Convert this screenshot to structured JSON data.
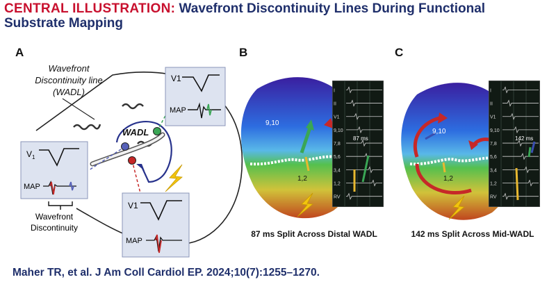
{
  "header": {
    "keyword": "CENTRAL ILLUSTRATION:",
    "title_line1": "Wavefront Discontinuity Lines During Functional",
    "title_line2": "Substrate Mapping"
  },
  "panel_a": {
    "letter": "A",
    "wadl_caption_l1": "Wavefront",
    "wadl_caption_l2": "Discontinuity line",
    "wadl_caption_l3": "(WADL)",
    "wadl_label": "WADL",
    "v1_label": "V1",
    "map_label": "MAP",
    "v1_left_label": "V",
    "v1_left_sub": "1",
    "discontinuity_l1": "Wavefront",
    "discontinuity_l2": "Discontinuity"
  },
  "panel_b": {
    "letter": "B",
    "point_upper": "9,10",
    "point_lower": "1,2",
    "split_label": "87 ms",
    "trace_labels": [
      "I",
      "II",
      "V1",
      "9,10",
      "7,8",
      "5,6",
      "3,4",
      "1,2",
      "RV"
    ],
    "caption": "87 ms Split Across Distal WADL"
  },
  "panel_c": {
    "letter": "C",
    "point_upper": "9,10",
    "point_lower": "1,2",
    "split_label": "142 ms",
    "trace_labels": [
      "I",
      "II",
      "V1",
      "9,10",
      "7,8",
      "5,6",
      "3,4",
      "1,2",
      "RV"
    ],
    "caption": "142 ms Split Across Mid-WADL"
  },
  "citation": "Maher TR, et al. J Am Coll Cardiol EP. 2024;10(7):1255–1270.",
  "colors": {
    "header_keyword": "#c8102e",
    "header_title": "#1f2f6b",
    "box_fill": "#dde3f0",
    "wadl_line": "#27328c",
    "arrow_red": "#c62828",
    "arrow_green": "#3aa655",
    "arrow_yellow": "#e8b830",
    "bolt": "#f2c40f"
  }
}
